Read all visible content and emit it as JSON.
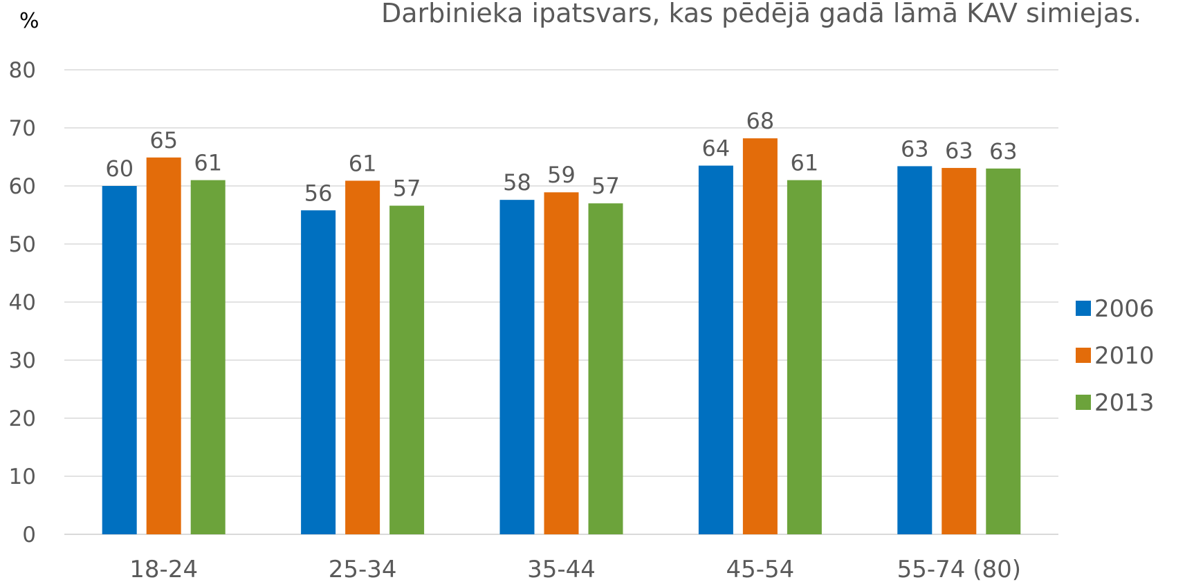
{
  "chart_data": {
    "type": "bar",
    "title": "Darbinieka ipatsvars, kas pēdējā gadā lāmā KAV simiejas.",
    "ylabel": "%",
    "xlabel": "",
    "ylim": [
      0,
      80
    ],
    "yticks": [
      0,
      10,
      20,
      30,
      40,
      50,
      60,
      70,
      80
    ],
    "grid": true,
    "legend_position": "right",
    "categories": [
      "18-24",
      "25-34",
      "35-44",
      "45-54",
      "55-74 (80)"
    ],
    "series": [
      {
        "name": "2006",
        "color": "#0070c0",
        "values": [
          60,
          55.8,
          57.6,
          63.5,
          63.4
        ],
        "labels": [
          "60",
          "56",
          "58",
          "64",
          "63"
        ]
      },
      {
        "name": "2010",
        "color": "#e36c0a",
        "values": [
          64.9,
          60.9,
          58.9,
          68.2,
          63.1
        ],
        "labels": [
          "65",
          "61",
          "59",
          "68",
          "63"
        ]
      },
      {
        "name": "2013",
        "color": "#6ca33b",
        "values": [
          61,
          56.6,
          57,
          61,
          63
        ],
        "labels": [
          "61",
          "57",
          "57",
          "61",
          "63"
        ]
      }
    ]
  }
}
